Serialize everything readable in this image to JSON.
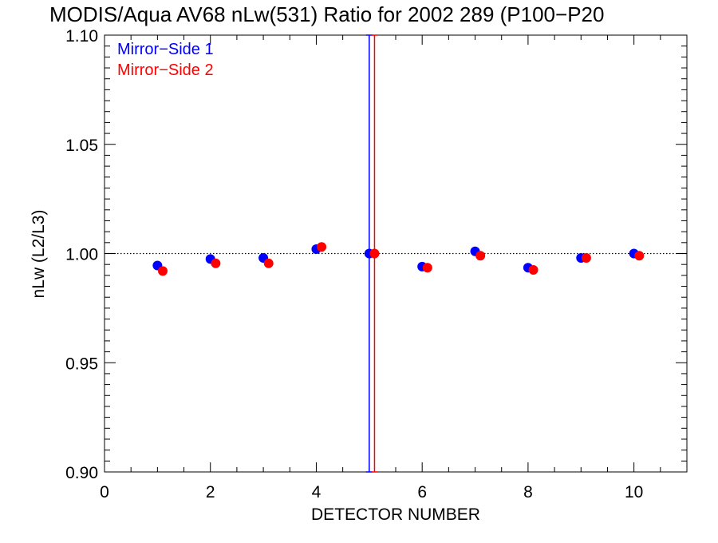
{
  "chart_data": {
    "type": "scatter",
    "title": "MODIS/Aqua AV68 nLw(531) Ratio for 2002 289 (P100−P20",
    "xlabel": "DETECTOR NUMBER",
    "ylabel": "nLw (L2/L3)",
    "xlim": [
      0,
      11
    ],
    "ylim": [
      0.9,
      1.1
    ],
    "x_ticks": [
      0,
      2,
      4,
      6,
      8,
      10
    ],
    "x_tick_labels": [
      "0",
      "2",
      "4",
      "6",
      "8",
      "10"
    ],
    "y_ticks": [
      0.9,
      0.95,
      1.0,
      1.05,
      1.1
    ],
    "y_tick_labels": [
      "0.90",
      "0.95",
      "1.00",
      "1.05",
      "1.10"
    ],
    "reference_line": 1.0,
    "legend_position": "top-left",
    "series": [
      {
        "name": "Mirror−Side 1",
        "color": "#0000ff",
        "x": [
          1,
          2,
          3,
          4,
          5,
          6,
          7,
          8,
          9,
          10
        ],
        "y": [
          0.9945,
          0.9975,
          0.998,
          1.002,
          1.0,
          0.994,
          1.001,
          0.9935,
          0.998,
          1.0
        ],
        "error_bar": {
          "x": 5,
          "low": 0.9,
          "high": 1.1
        }
      },
      {
        "name": "Mirror−Side 2",
        "color": "#ff0000",
        "x": [
          1.1,
          2.1,
          3.1,
          4.1,
          5.1,
          6.1,
          7.1,
          8.1,
          9.1,
          10.1
        ],
        "y": [
          0.992,
          0.9955,
          0.9955,
          1.003,
          1.0,
          0.9935,
          0.999,
          0.9925,
          0.998,
          0.999
        ],
        "error_bar": {
          "x": 5.1,
          "low": 0.9,
          "high": 1.1
        }
      }
    ]
  }
}
